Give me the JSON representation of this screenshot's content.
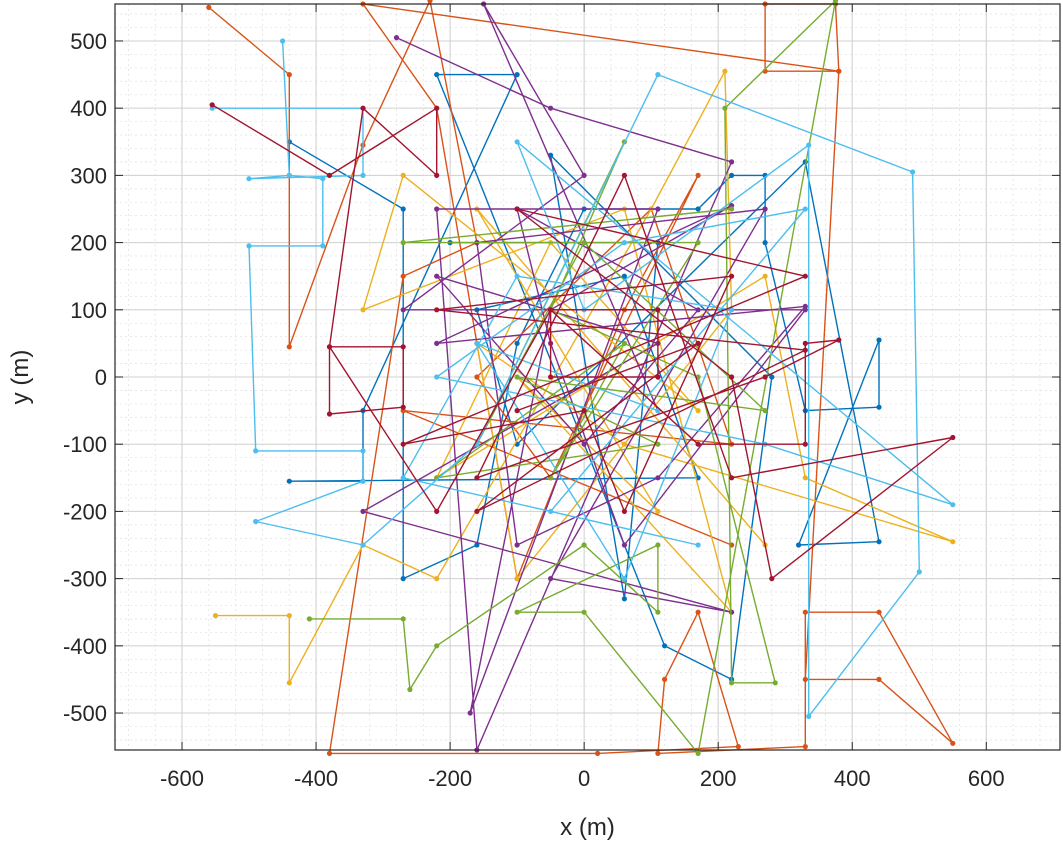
{
  "chart_data": {
    "type": "line",
    "xlabel": "x (m)",
    "ylabel": "y (m)",
    "xlim": [
      -700,
      710
    ],
    "ylim": [
      -555,
      555
    ],
    "x_ticks": [
      -600,
      -400,
      -200,
      0,
      200,
      400,
      600
    ],
    "y_ticks": [
      -500,
      -400,
      -300,
      -200,
      -100,
      0,
      100,
      200,
      300,
      400,
      500
    ],
    "x_tick_labels": [
      "-600",
      "-400",
      "-200",
      "0",
      "200",
      "400",
      "600"
    ],
    "y_tick_labels": [
      "-500",
      "-400",
      "-300",
      "-200",
      "-100",
      "0",
      "100",
      "200",
      "300",
      "400",
      "500"
    ],
    "grid": true,
    "minor_grid": true,
    "series": [
      {
        "color": "#0072BD",
        "points": [
          [
            -440,
            350
          ],
          [
            -270,
            250
          ],
          [
            -270,
            -300
          ],
          [
            -160,
            -250
          ],
          [
            -100,
            50
          ],
          [
            0,
            250
          ],
          [
            170,
            250
          ],
          [
            220,
            300
          ],
          [
            270,
            300
          ],
          [
            270,
            200
          ],
          [
            330,
            -50
          ],
          [
            440,
            -45
          ],
          [
            440,
            55
          ],
          [
            320,
            -250
          ],
          [
            440,
            -245
          ],
          [
            330,
            320
          ],
          [
            -100,
            -100
          ],
          [
            -160,
            100
          ],
          [
            60,
            150
          ],
          [
            170,
            -150
          ],
          [
            -440,
            -155
          ],
          [
            -330,
            -155
          ],
          [
            -330,
            -50
          ],
          [
            -100,
            450
          ],
          [
            -220,
            450
          ],
          [
            120,
            -400
          ],
          [
            220,
            -450
          ],
          [
            280,
            0
          ],
          [
            -50,
            330
          ],
          [
            60,
            -330
          ],
          [
            110,
            200
          ],
          [
            -200,
            200
          ]
        ]
      },
      {
        "color": "#D95319",
        "points": [
          [
            -560,
            550
          ],
          [
            -440,
            450
          ],
          [
            -440,
            45
          ],
          [
            -330,
            345
          ],
          [
            -230,
            560
          ],
          [
            -160,
            200
          ],
          [
            -270,
            150
          ],
          [
            -380,
            -560
          ],
          [
            20,
            -560
          ],
          [
            230,
            -550
          ],
          [
            170,
            -350
          ],
          [
            120,
            -450
          ],
          [
            110,
            -560
          ],
          [
            330,
            -550
          ],
          [
            330,
            -350
          ],
          [
            440,
            -350
          ],
          [
            550,
            -545
          ],
          [
            440,
            -450
          ],
          [
            330,
            -450
          ],
          [
            380,
            455
          ],
          [
            270,
            455
          ],
          [
            270,
            555
          ],
          [
            375,
            555
          ],
          [
            380,
            455
          ],
          [
            -330,
            555
          ],
          [
            -220,
            400
          ],
          [
            -100,
            -300
          ],
          [
            60,
            100
          ],
          [
            170,
            300
          ],
          [
            -50,
            -150
          ],
          [
            -160,
            0
          ],
          [
            100,
            250
          ],
          [
            220,
            -100
          ],
          [
            -270,
            -50
          ],
          [
            220,
            -250
          ]
        ]
      },
      {
        "color": "#EDB120",
        "points": [
          [
            -550,
            -355
          ],
          [
            -440,
            -355
          ],
          [
            -440,
            -455
          ],
          [
            -330,
            -250
          ],
          [
            -220,
            -300
          ],
          [
            100,
            250
          ],
          [
            210,
            455
          ],
          [
            220,
            100
          ],
          [
            -100,
            -300
          ],
          [
            -160,
            50
          ],
          [
            60,
            -100
          ],
          [
            550,
            -245
          ],
          [
            330,
            -150
          ],
          [
            270,
            150
          ],
          [
            -220,
            -150
          ],
          [
            -50,
            200
          ],
          [
            170,
            -50
          ],
          [
            -270,
            300
          ],
          [
            -330,
            100
          ],
          [
            60,
            250
          ],
          [
            220,
            -350
          ],
          [
            -100,
            0
          ],
          [
            110,
            -200
          ],
          [
            -160,
            250
          ],
          [
            270,
            -250
          ]
        ]
      },
      {
        "color": "#7E2F8E",
        "points": [
          [
            -280,
            505
          ],
          [
            -50,
            400
          ],
          [
            220,
            320
          ],
          [
            -160,
            -555
          ],
          [
            -220,
            250
          ],
          [
            110,
            250
          ],
          [
            -170,
            -500
          ],
          [
            -50,
            100
          ],
          [
            220,
            255
          ],
          [
            -220,
            50
          ],
          [
            330,
            105
          ],
          [
            110,
            -150
          ],
          [
            -100,
            -250
          ],
          [
            -160,
            200
          ],
          [
            270,
            250
          ],
          [
            -50,
            -300
          ],
          [
            220,
            -350
          ],
          [
            -330,
            -200
          ],
          [
            110,
            50
          ],
          [
            -220,
            150
          ],
          [
            0,
            -100
          ],
          [
            170,
            100
          ],
          [
            -100,
            250
          ],
          [
            -50,
            50
          ],
          [
            60,
            -250
          ],
          [
            330,
            100
          ],
          [
            -270,
            100
          ],
          [
            0,
            300
          ],
          [
            -150,
            555
          ],
          [
            110,
            -50
          ]
        ]
      },
      {
        "color": "#77AC30",
        "points": [
          [
            -410,
            -360
          ],
          [
            -270,
            -360
          ],
          [
            -260,
            -465
          ],
          [
            -220,
            -400
          ],
          [
            0,
            -250
          ],
          [
            110,
            -350
          ],
          [
            110,
            -250
          ],
          [
            -100,
            -350
          ],
          [
            0,
            -350
          ],
          [
            170,
            -560
          ],
          [
            375,
            560
          ],
          [
            210,
            400
          ],
          [
            220,
            -455
          ],
          [
            285,
            -455
          ],
          [
            170,
            0
          ],
          [
            -50,
            100
          ],
          [
            60,
            350
          ],
          [
            -160,
            -100
          ],
          [
            0,
            200
          ],
          [
            270,
            -50
          ],
          [
            -100,
            0
          ],
          [
            110,
            -100
          ],
          [
            -220,
            -150
          ],
          [
            60,
            50
          ],
          [
            -50,
            -150
          ],
          [
            170,
            200
          ],
          [
            -270,
            200
          ],
          [
            220,
            250
          ]
        ]
      },
      {
        "color": "#4DBEEE",
        "points": [
          [
            -555,
            400
          ],
          [
            -330,
            400
          ],
          [
            -330,
            300
          ],
          [
            -500,
            295
          ],
          [
            -440,
            300
          ],
          [
            -450,
            500
          ],
          [
            -440,
            300
          ],
          [
            -390,
            295
          ],
          [
            -390,
            195
          ],
          [
            -500,
            195
          ],
          [
            -490,
            -110
          ],
          [
            -330,
            -110
          ],
          [
            -330,
            -155
          ],
          [
            -490,
            -215
          ],
          [
            -330,
            -250
          ],
          [
            -160,
            -100
          ],
          [
            110,
            450
          ],
          [
            490,
            305
          ],
          [
            500,
            -290
          ],
          [
            335,
            -505
          ],
          [
            335,
            345
          ],
          [
            0,
            100
          ],
          [
            -100,
            350
          ],
          [
            550,
            -190
          ],
          [
            270,
            -100
          ],
          [
            -220,
            0
          ],
          [
            60,
            200
          ],
          [
            330,
            250
          ],
          [
            -50,
            -200
          ],
          [
            170,
            -250
          ],
          [
            -270,
            -150
          ],
          [
            -100,
            150
          ],
          [
            220,
            100
          ],
          [
            60,
            -300
          ],
          [
            -160,
            50
          ],
          [
            110,
            -50
          ]
        ]
      },
      {
        "color": "#A2142F",
        "points": [
          [
            -555,
            405
          ],
          [
            -380,
            300
          ],
          [
            -220,
            400
          ],
          [
            -220,
            300
          ],
          [
            -330,
            400
          ],
          [
            -380,
            45
          ],
          [
            -380,
            -55
          ],
          [
            -270,
            -45
          ],
          [
            -270,
            45
          ],
          [
            -380,
            45
          ],
          [
            -220,
            -200
          ],
          [
            -50,
            100
          ],
          [
            110,
            100
          ],
          [
            110,
            0
          ],
          [
            -50,
            0
          ],
          [
            -50,
            100
          ],
          [
            170,
            -100
          ],
          [
            330,
            -100
          ],
          [
            330,
            50
          ],
          [
            380,
            55
          ],
          [
            270,
            0
          ],
          [
            -160,
            -150
          ],
          [
            60,
            300
          ],
          [
            220,
            -150
          ],
          [
            550,
            -90
          ],
          [
            280,
            -300
          ],
          [
            220,
            0
          ],
          [
            -100,
            250
          ],
          [
            330,
            150
          ],
          [
            -270,
            -100
          ],
          [
            0,
            -50
          ],
          [
            60,
            -200
          ],
          [
            220,
            150
          ],
          [
            -220,
            100
          ],
          [
            330,
            40
          ],
          [
            -160,
            -200
          ],
          [
            170,
            50
          ],
          [
            -100,
            -50
          ]
        ]
      }
    ]
  }
}
